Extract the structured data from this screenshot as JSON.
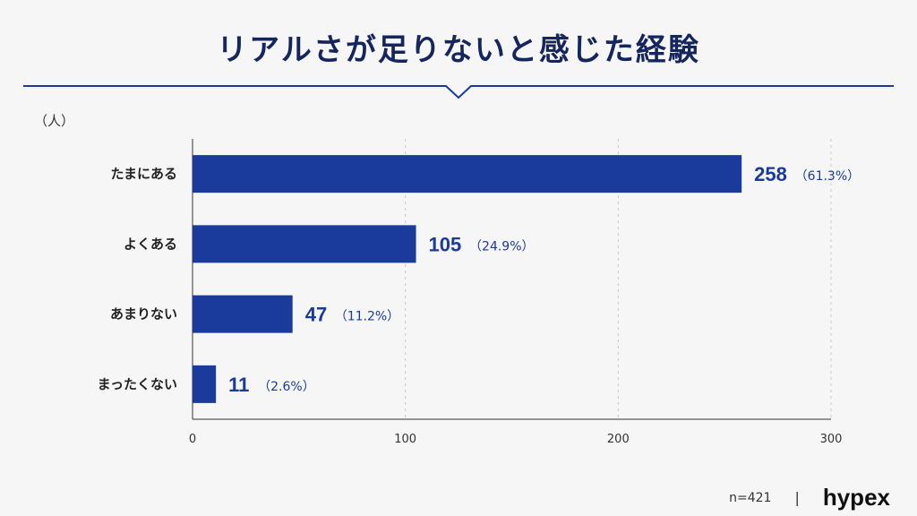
{
  "header": {
    "title": "リアルさが足りないと感じた経験"
  },
  "chart_data": {
    "type": "bar",
    "orientation": "horizontal",
    "unit_label": "（人）",
    "categories": [
      "たまにある",
      "よくある",
      "あまりない",
      "まったくない"
    ],
    "values": [
      258,
      105,
      47,
      11
    ],
    "percent_labels": [
      "（61.3%）",
      "（24.9%）",
      "（11.2%）",
      "（2.6%）"
    ],
    "xlim": [
      0,
      300
    ],
    "xticks": [
      0,
      100,
      200,
      300
    ],
    "grid": true,
    "colors": {
      "bar": "#1a3a9c",
      "value_text": "#1a3a9c",
      "title": "#15265e"
    }
  },
  "footer": {
    "sample_size": "n=421",
    "separator": "|",
    "brand": "hypex"
  }
}
